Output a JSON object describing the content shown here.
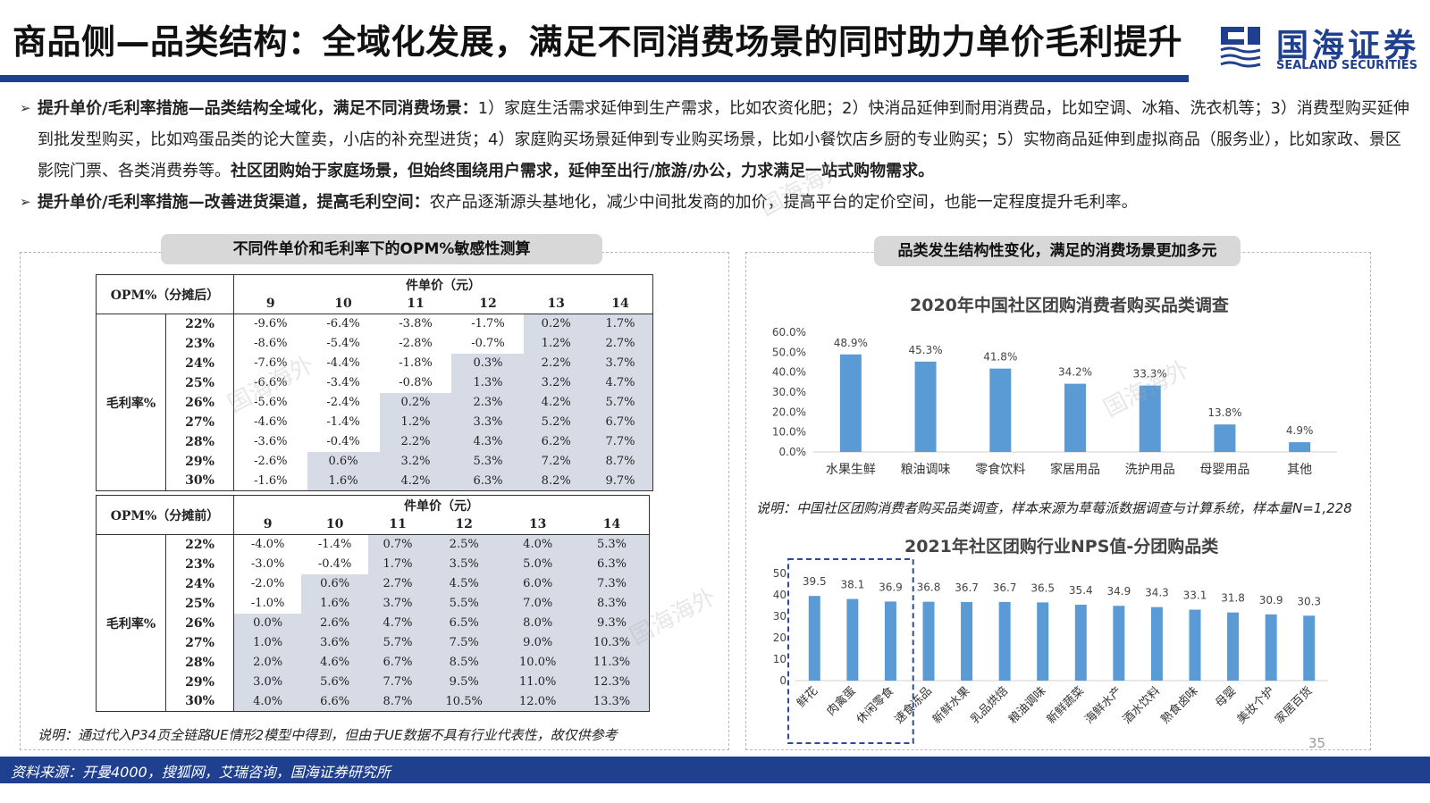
{
  "header": {
    "title": "商品侧—品类结构：全域化发展，满足不同消费场景的同时助力单价毛利提升",
    "logo_cn": "国海证券",
    "logo_en": "SEALAND SECURITIES",
    "brand_color": "#1f3f8f"
  },
  "bullets": [
    {
      "lead": "提升单价/毛利率措施—品类结构全域化，满足不同消费场景：",
      "body": "1）家庭生活需求延伸到生产需求，比如农资化肥；2）快消品延伸到耐用消费品，比如空调、冰箱、洗衣机等；3）消费型购买延伸到批发型购买，比如鸡蛋品类的论大筐卖，小店的补充型进货；4）家庭购买场景延伸到专业购买场景，比如小餐饮店乡厨的专业购买；5）实物商品延伸到虚拟商品（服务业），比如家政、景区影院门票、各类消费券等。",
      "tail": "社区团购始于家庭场景，但始终围绕用户需求，延伸至出行/旅游/办公，力求满足一站式购物需求。"
    },
    {
      "lead": "提升单价/毛利率措施—改善进货渠道，提高毛利空间：",
      "body": "农产品逐渐源头基地化，减少中间批发商的加价，提高平台的定价空间，也能一定程度提升毛利率。",
      "tail": ""
    }
  ],
  "left_panel": {
    "pill": "不同件单价和毛利率下的OPM%敏感性测算",
    "note": "说明：通过代入P34页全链路UE情形2模型中得到，但由于UE数据不具有行业代表性，故仅供参考",
    "table1": {
      "corner": "OPM%（分摊后）",
      "col_group": "件单价（元）",
      "row_group": "毛利率%",
      "cols": [
        "9",
        "10",
        "11",
        "12",
        "13",
        "14"
      ],
      "rows": [
        "22%",
        "23%",
        "24%",
        "25%",
        "26%",
        "27%",
        "28%",
        "29%",
        "30%"
      ],
      "cells": [
        [
          "-9.6%",
          "-6.4%",
          "-3.8%",
          "-1.7%",
          "0.2%",
          "1.7%"
        ],
        [
          "-8.6%",
          "-5.4%",
          "-2.8%",
          "-0.7%",
          "1.2%",
          "2.7%"
        ],
        [
          "-7.6%",
          "-4.4%",
          "-1.8%",
          "0.3%",
          "2.2%",
          "3.7%"
        ],
        [
          "-6.6%",
          "-3.4%",
          "-0.8%",
          "1.3%",
          "3.2%",
          "4.7%"
        ],
        [
          "-5.6%",
          "-2.4%",
          "0.2%",
          "2.3%",
          "4.2%",
          "5.7%"
        ],
        [
          "-4.6%",
          "-1.4%",
          "1.2%",
          "3.3%",
          "5.2%",
          "6.7%"
        ],
        [
          "-3.6%",
          "-0.4%",
          "2.2%",
          "4.3%",
          "6.2%",
          "7.7%"
        ],
        [
          "-2.6%",
          "0.6%",
          "3.2%",
          "5.3%",
          "7.2%",
          "8.7%"
        ],
        [
          "-1.6%",
          "1.6%",
          "4.2%",
          "6.3%",
          "8.2%",
          "9.7%"
        ]
      ]
    },
    "table2": {
      "corner": "OPM%（分摊前）",
      "col_group": "件单价（元）",
      "row_group": "毛利率%",
      "cols": [
        "9",
        "10",
        "11",
        "12",
        "13",
        "14"
      ],
      "rows": [
        "22%",
        "23%",
        "24%",
        "25%",
        "26%",
        "27%",
        "28%",
        "29%",
        "30%"
      ],
      "cells": [
        [
          "-4.0%",
          "-1.4%",
          "0.7%",
          "2.5%",
          "4.0%",
          "5.3%"
        ],
        [
          "-3.0%",
          "-0.4%",
          "1.7%",
          "3.5%",
          "5.0%",
          "6.3%"
        ],
        [
          "-2.0%",
          "0.6%",
          "2.7%",
          "4.5%",
          "6.0%",
          "7.3%"
        ],
        [
          "-1.0%",
          "1.6%",
          "3.7%",
          "5.5%",
          "7.0%",
          "8.3%"
        ],
        [
          "0.0%",
          "2.6%",
          "4.7%",
          "6.5%",
          "8.0%",
          "9.3%"
        ],
        [
          "1.0%",
          "3.6%",
          "5.7%",
          "7.5%",
          "9.0%",
          "10.3%"
        ],
        [
          "2.0%",
          "4.6%",
          "6.7%",
          "8.5%",
          "10.0%",
          "11.3%"
        ],
        [
          "3.0%",
          "5.6%",
          "7.7%",
          "9.5%",
          "11.0%",
          "12.3%"
        ],
        [
          "4.0%",
          "6.6%",
          "8.7%",
          "10.5%",
          "12.0%",
          "13.3%"
        ]
      ]
    },
    "shade_color": "#d7dbe5"
  },
  "right_panel": {
    "pill": "品类发生结构性变化，满足的消费场景更加多元",
    "note": "说明：中国社区团购消费者购买品类调查，样本来源为草莓派数据调查与计算系统，样本量N=1,228"
  },
  "chart_data": [
    {
      "type": "bar",
      "title": "2020年中国社区团购消费者购买品类调查",
      "categories": [
        "水果生鲜",
        "粮油调味",
        "零食饮料",
        "家居用品",
        "洗护用品",
        "母婴用品",
        "其他"
      ],
      "values": [
        48.9,
        45.3,
        41.8,
        34.2,
        33.3,
        13.8,
        4.9
      ],
      "data_labels": [
        "48.9%",
        "45.3%",
        "41.8%",
        "34.2%",
        "33.3%",
        "13.8%",
        "4.9%"
      ],
      "yticks": [
        "0.0%",
        "10.0%",
        "20.0%",
        "30.0%",
        "40.0%",
        "50.0%",
        "60.0%"
      ],
      "ylim": [
        0,
        60
      ],
      "xlabel": "",
      "ylabel": "",
      "color": "#5b9bd5"
    },
    {
      "type": "bar",
      "title": "2021年社区团购行业NPS值-分团购品类",
      "categories": [
        "鲜花",
        "肉禽蛋",
        "休闲零食",
        "速食冻品",
        "新鲜水果",
        "乳品烘焙",
        "粮油调味",
        "新鲜蔬菜",
        "海鲜水产",
        "酒水饮料",
        "熟食卤味",
        "母婴",
        "美妆个护",
        "家居百货"
      ],
      "values": [
        39.5,
        38.1,
        36.9,
        36.8,
        36.7,
        36.7,
        36.5,
        35.4,
        34.9,
        34.3,
        33.1,
        31.8,
        30.9,
        30.3
      ],
      "data_labels": [
        "39.5",
        "38.1",
        "36.9",
        "36.8",
        "36.7",
        "36.7",
        "36.5",
        "35.4",
        "34.9",
        "34.3",
        "33.1",
        "31.8",
        "30.9",
        "30.3"
      ],
      "yticks": [
        "0",
        "10",
        "20",
        "30",
        "40",
        "50"
      ],
      "ylim": [
        0,
        50
      ],
      "highlighted_categories": [
        "鲜花",
        "肉禽蛋",
        "休闲零食"
      ],
      "xlabel": "",
      "ylabel": "",
      "color": "#5b9bd5",
      "highlight_box_color": "#2e4a9a"
    }
  ],
  "footer": {
    "source": "资料来源：开曼4000，搜狐网，艾瑞咨询，国海证券研究所",
    "page_number": "35"
  },
  "watermark": "国海海外"
}
